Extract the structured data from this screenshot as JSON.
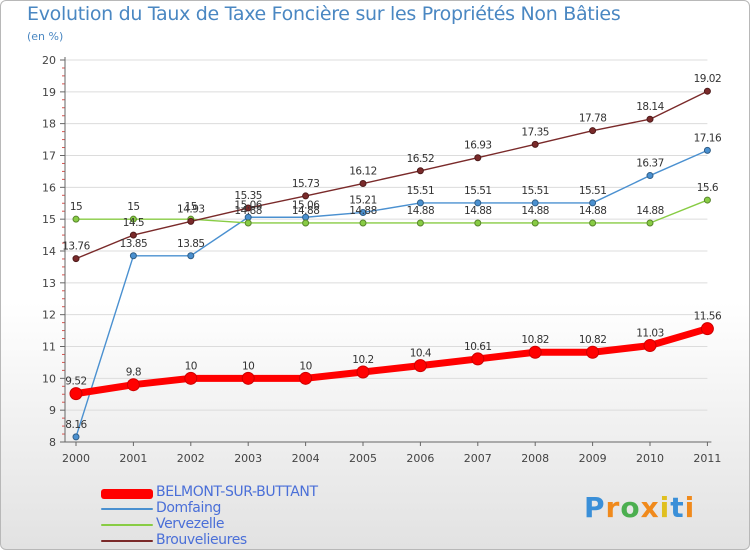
{
  "chart_data": {
    "type": "line",
    "title": "Evolution du Taux de Taxe Foncière sur les Propriétés Non Bâties",
    "ylabel": "(en %)",
    "xlabel": "",
    "ylim": [
      8,
      20
    ],
    "yticks": [
      8,
      9,
      10,
      11,
      12,
      13,
      14,
      15,
      16,
      17,
      18,
      19,
      20
    ],
    "categories": [
      "2000",
      "2001",
      "2002",
      "2003",
      "2004",
      "2005",
      "2006",
      "2007",
      "2008",
      "2009",
      "2010",
      "2011"
    ],
    "series": [
      {
        "name": "BELMONT-SUR-BUTTANT",
        "color": "#ff0000",
        "values": [
          9.52,
          9.8,
          10,
          10,
          10,
          10.2,
          10.4,
          10.61,
          10.82,
          10.82,
          11.03,
          11.56
        ],
        "labels": [
          "9.52",
          "9.8",
          "10",
          "10",
          "10",
          "10.2",
          "10.4",
          "10.61",
          "10.82",
          "10.82",
          "11.03",
          "11.56"
        ]
      },
      {
        "name": "Domfaing",
        "color": "#4a90d0",
        "values": [
          8.16,
          13.85,
          13.85,
          15.06,
          15.06,
          15.21,
          15.51,
          15.51,
          15.51,
          15.51,
          16.37,
          17.16
        ],
        "labels": [
          "8.16",
          "13.85",
          "13.85",
          "15.06",
          "15.06",
          "15.21",
          "15.51",
          "15.51",
          "15.51",
          "15.51",
          "16.37",
          "17.16"
        ]
      },
      {
        "name": "Vervezelle",
        "color": "#88cc44",
        "values": [
          15,
          15,
          15,
          14.88,
          14.88,
          14.88,
          14.88,
          14.88,
          14.88,
          14.88,
          14.88,
          15.6
        ],
        "labels": [
          "15",
          "15",
          "15",
          "14.88",
          "14.88",
          "14.88",
          "14.88",
          "14.88",
          "14.88",
          "14.88",
          "14.88",
          "15.6"
        ]
      },
      {
        "name": "Brouvelieures",
        "color": "#7a2a2a",
        "values": [
          13.76,
          14.5,
          14.93,
          15.35,
          15.73,
          16.12,
          16.52,
          16.93,
          17.35,
          17.78,
          18.14,
          19.02
        ],
        "labels": [
          "13.76",
          "14.5",
          "14.93",
          "15.35",
          "15.73",
          "16.12",
          "16.52",
          "16.93",
          "17.35",
          "17.78",
          "18.14",
          "19.02"
        ]
      }
    ],
    "legend_position": "bottom-left"
  },
  "logo": {
    "letters": [
      "P",
      "r",
      "o",
      "x",
      "i",
      "t",
      "i"
    ],
    "colors": [
      "#3a8fd8",
      "#f08a1c",
      "#4caf50",
      "#f08a1c",
      "#e0c020",
      "#3a8fd8",
      "#f08a1c"
    ]
  }
}
